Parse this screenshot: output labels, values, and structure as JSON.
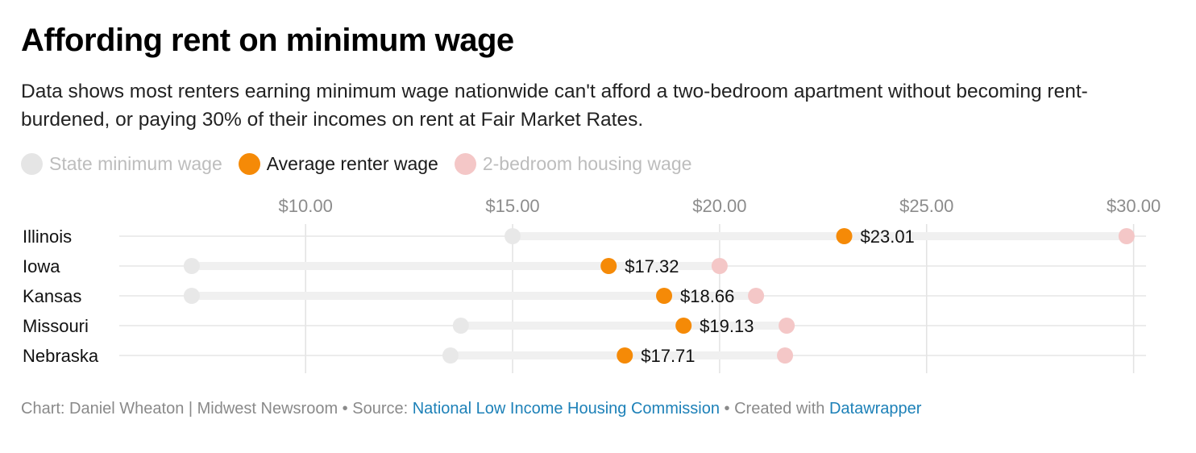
{
  "header": {
    "title": "Affording rent on minimum wage",
    "description": "Data shows most renters earning minimum wage nationwide can't afford a two-bedroom apartment without becoming rent-burdened, or paying 30% of their incomes on rent at Fair Market Rates."
  },
  "legend": {
    "items": [
      {
        "label": "State minimum wage",
        "color": "#e5e5e5",
        "state": "dim"
      },
      {
        "label": "Average renter wage",
        "color": "#f58a07",
        "state": "active"
      },
      {
        "label": "2-bedroom housing wage",
        "color": "#f4c7c7",
        "state": "dim"
      }
    ]
  },
  "chart_data": {
    "type": "range-dot",
    "x_axis": {
      "ticks": [
        10,
        15,
        20,
        25,
        30
      ],
      "tick_labels": [
        "$10.00",
        "$15.00",
        "$20.00",
        "$25.00",
        "$30.00"
      ],
      "range": [
        5.5,
        30.3
      ]
    },
    "grid": true,
    "legend_position": "top-left",
    "categories": [
      "Illinois",
      "Iowa",
      "Kansas",
      "Missouri",
      "Nebraska"
    ],
    "series": [
      {
        "name": "State minimum wage",
        "color": "#e8e8e8",
        "values": [
          15.0,
          7.25,
          7.25,
          13.75,
          13.5
        ]
      },
      {
        "name": "Average renter wage",
        "color": "#f58a07",
        "values": [
          23.01,
          17.32,
          18.66,
          19.13,
          17.71
        ],
        "data_labels": [
          "$23.01",
          "$17.32",
          "$18.66",
          "$19.13",
          "$17.71"
        ]
      },
      {
        "name": "2-bedroom housing wage",
        "color": "#f4c7c7",
        "values": [
          29.83,
          20.0,
          20.88,
          21.62,
          21.58
        ]
      }
    ],
    "range_bar_color": "#f0f0f0"
  },
  "footer": {
    "credit_prefix": "Chart: Daniel Wheaton | Midwest Newsroom • Source: ",
    "source_link": "National Low Income Housing Commission",
    "created_prefix": " • Created with ",
    "tool_link": "Datawrapper"
  }
}
